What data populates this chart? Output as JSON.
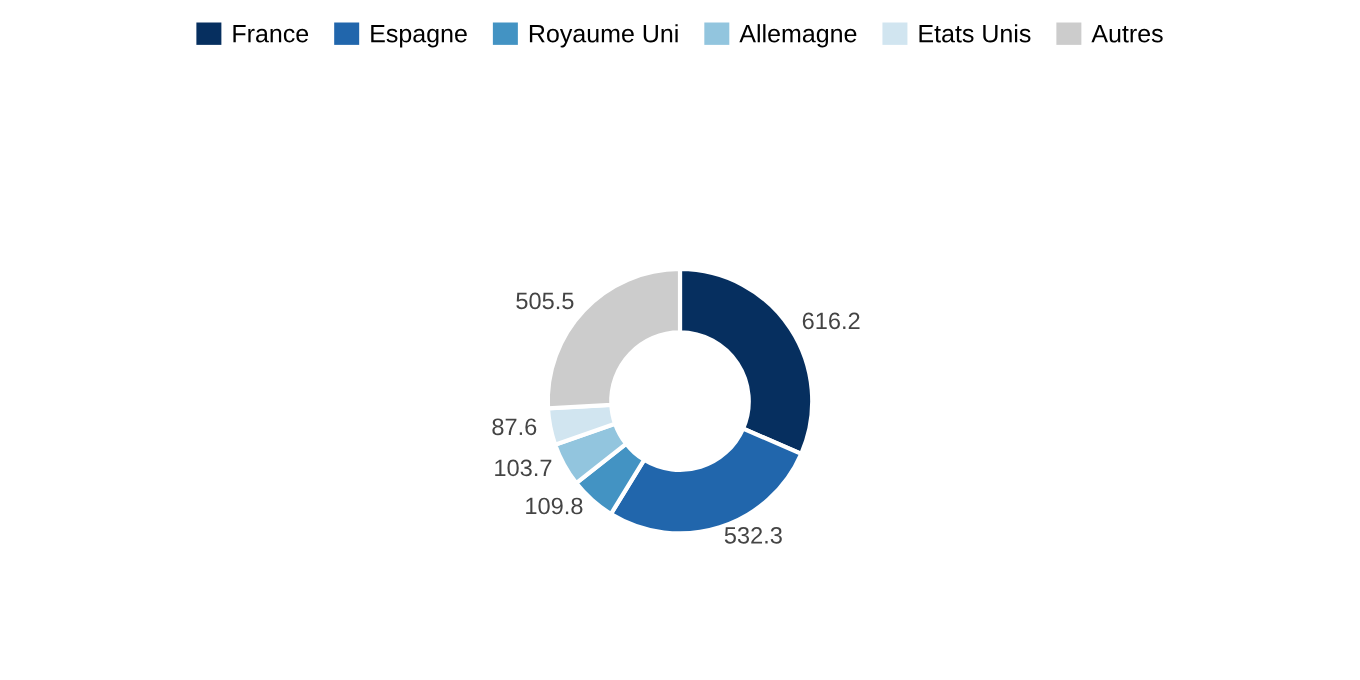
{
  "chart_data": {
    "type": "donut",
    "categories": [
      "France",
      "Espagne",
      "Royaume Uni",
      "Allemagne",
      "Etats Unis",
      "Autres"
    ],
    "values": [
      616.2,
      532.3,
      109.8,
      103.7,
      87.6,
      505.5
    ],
    "colors": [
      "#062f5f",
      "#2166ac",
      "#4393c3",
      "#92c5de",
      "#d1e5f0",
      "#cccccc"
    ],
    "data_labels": true,
    "legend": "top"
  }
}
